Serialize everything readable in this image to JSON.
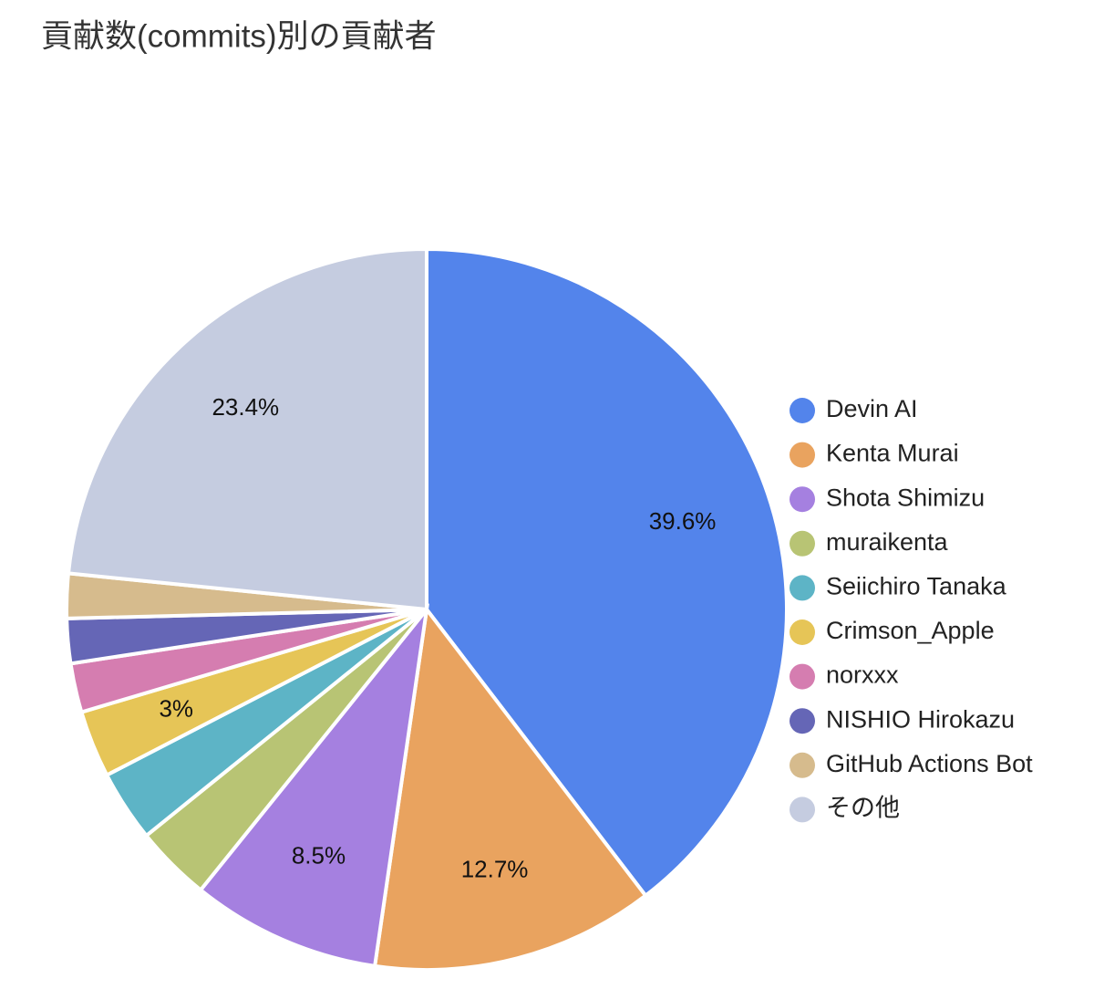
{
  "chart_data": {
    "type": "pie",
    "title": "貢献数(commits)別の貢献者",
    "categories": [
      "Devin AI",
      "Kenta Murai",
      "Shota Shimizu",
      "muraikenta",
      "Seiichiro Tanaka",
      "Crimson_Apple",
      "norxxx",
      "NISHIO Hirokazu",
      "GitHub Actions Bot",
      "その他"
    ],
    "values": [
      39.6,
      12.7,
      8.5,
      3.4,
      3.2,
      3,
      2.2,
      2.0,
      2.0,
      23.4
    ],
    "value_labels": [
      "39.6%",
      "12.7%",
      "8.5%",
      null,
      null,
      "3%",
      null,
      null,
      null,
      "23.4%"
    ],
    "colors": [
      "#5384eb",
      "#e9a35f",
      "#a580e0",
      "#b8c474",
      "#5db4c6",
      "#e6c557",
      "#d57db0",
      "#6566b6",
      "#d6bb8d",
      "#c5cce0"
    ],
    "legend": "right"
  }
}
